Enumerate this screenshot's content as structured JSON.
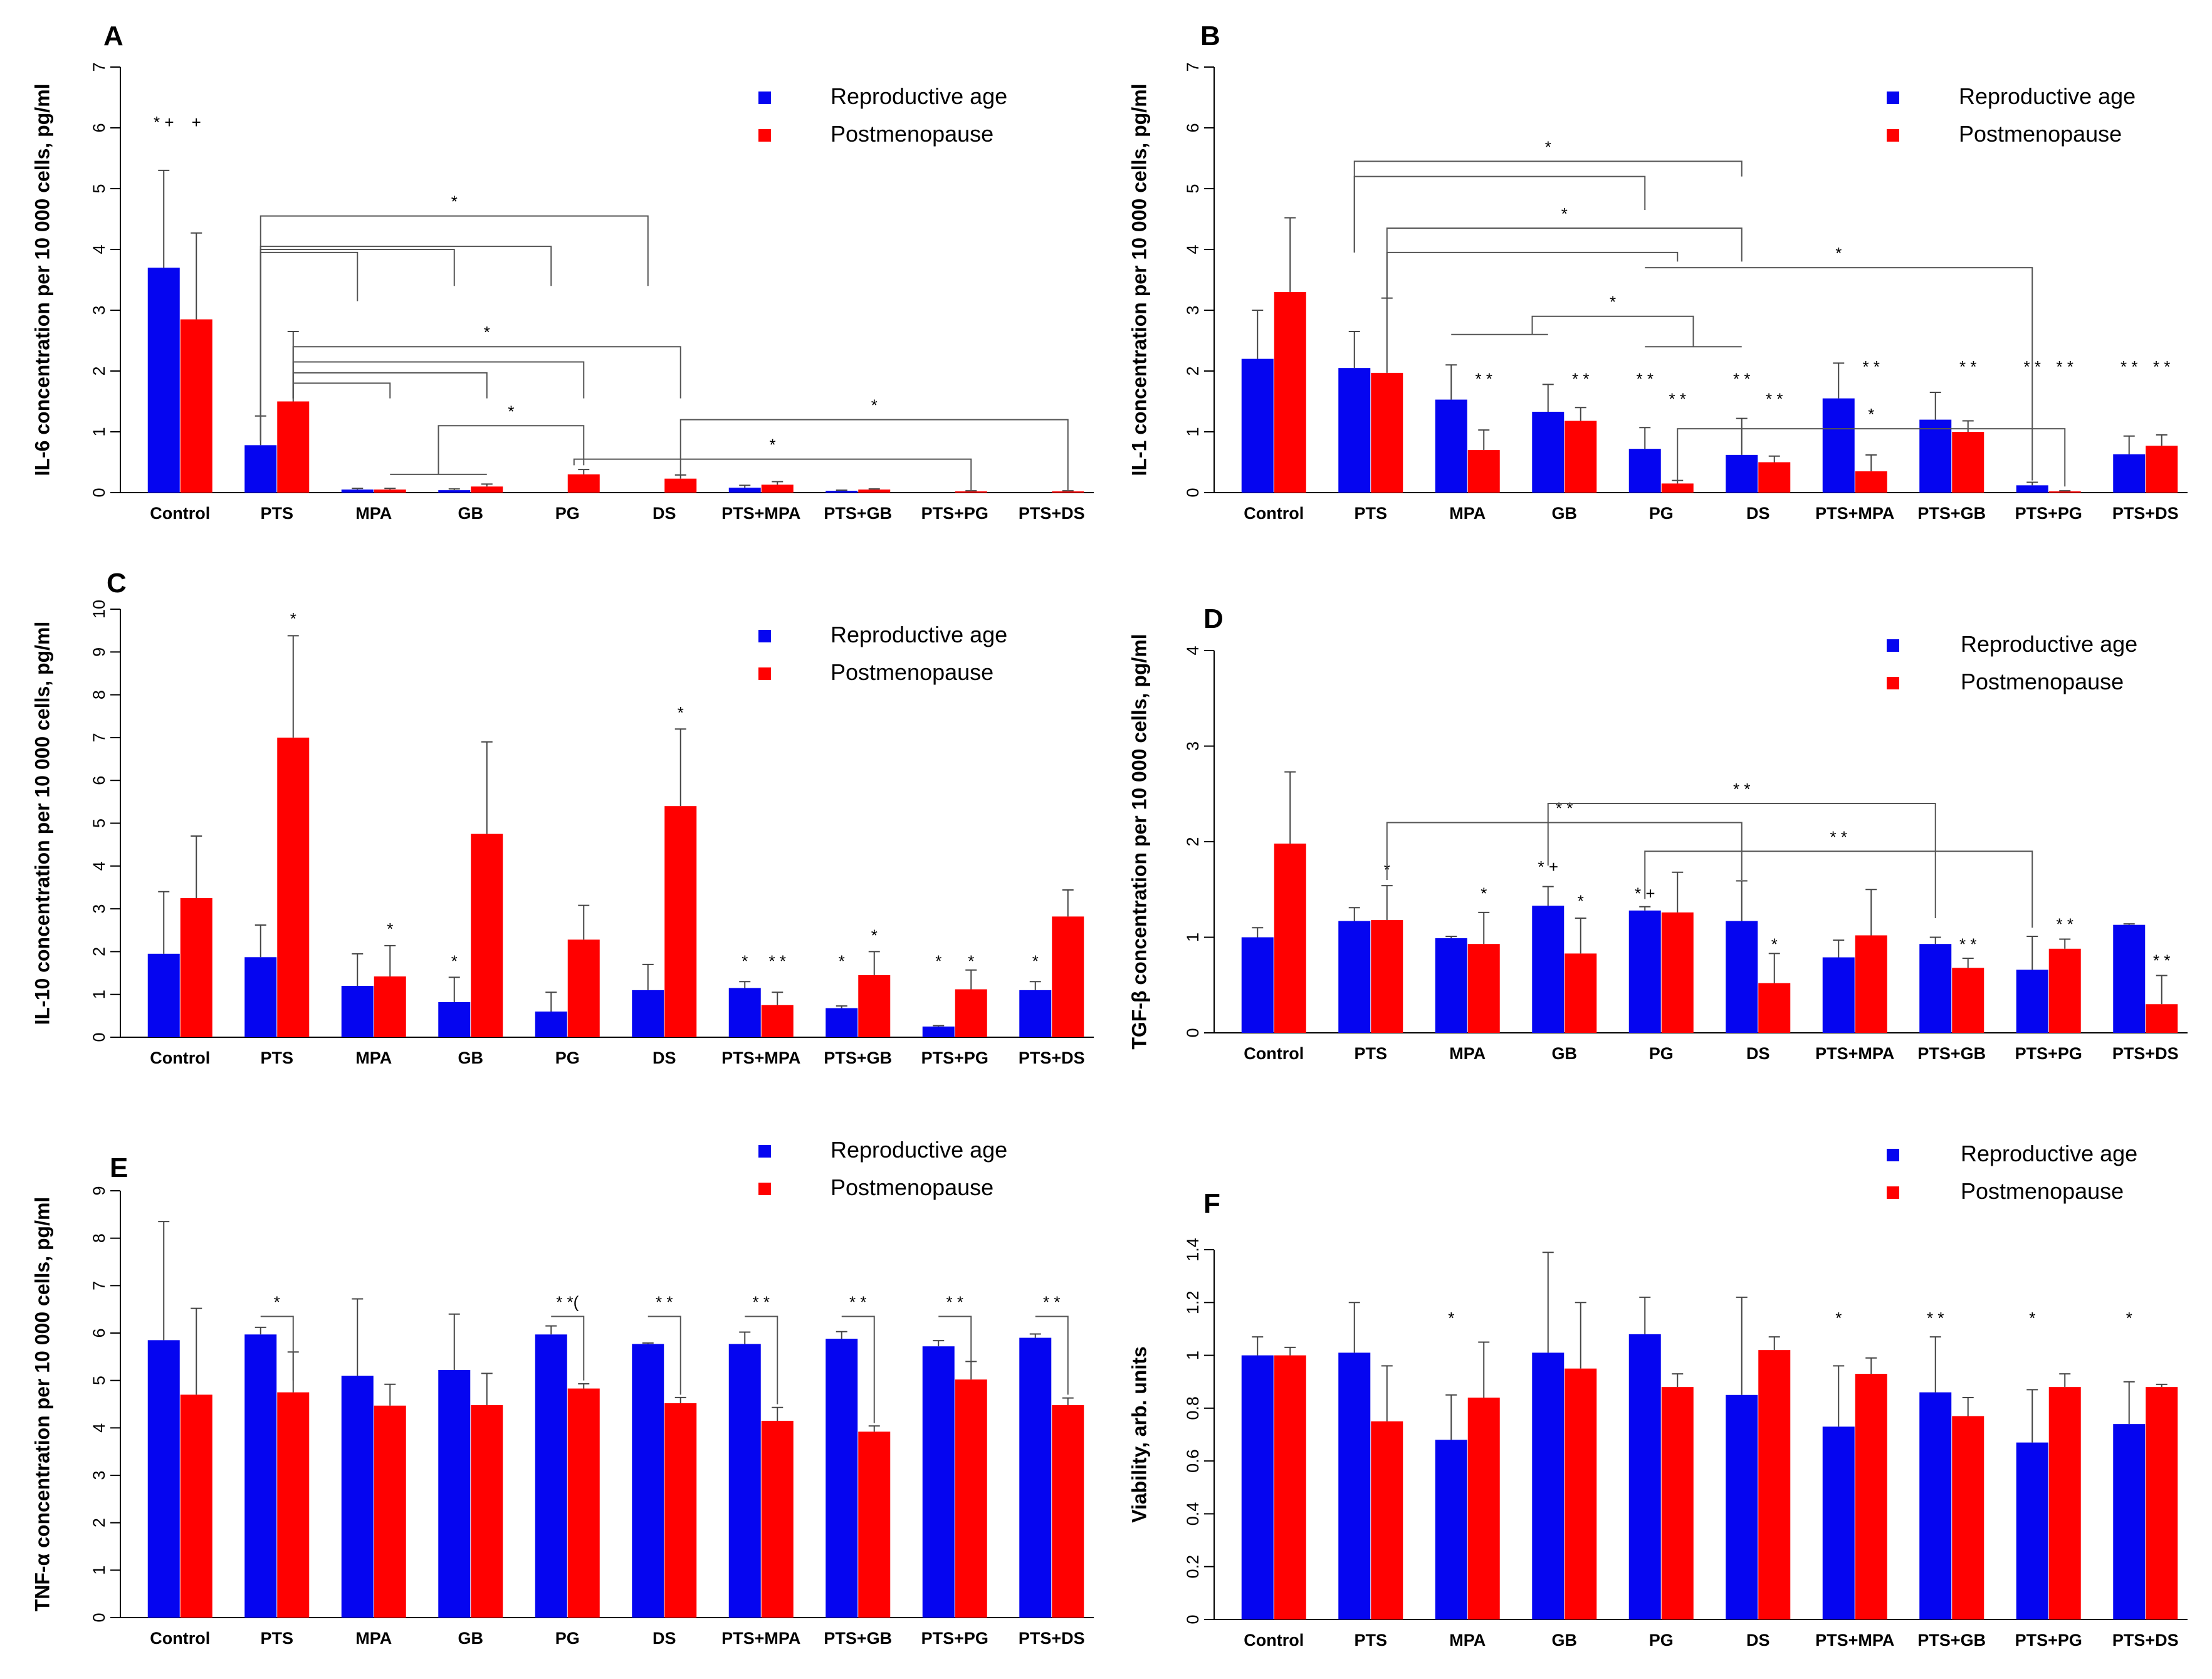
{
  "legend": {
    "blue_label": "Reproductive age",
    "red_label": "Postmenopause"
  },
  "colors": {
    "blue": "#0505f0",
    "red": "#ff0000",
    "axis": "#000000",
    "bracket": "#555555",
    "error": "#444444"
  },
  "chart_data": [
    {
      "type": "bar",
      "panel": "A",
      "ylabel": "IL-6 concentration per 10 000 cells, pg/ml",
      "ylim": [
        0,
        7
      ],
      "ticks": [
        0,
        1,
        2,
        3,
        4,
        5,
        6,
        7
      ],
      "categories": [
        "Control",
        "PTS",
        "MPA",
        "GB",
        "PG",
        "DS",
        "PTS+MPA",
        "PTS+GB",
        "PTS+PG",
        "PTS+DS"
      ],
      "series": [
        {
          "name": "Reproductive age",
          "values": [
            3.7,
            0.78,
            0.05,
            0.04,
            0,
            0,
            0.08,
            0.03,
            0,
            0
          ],
          "errors": [
            1.6,
            0.48,
            0.02,
            0.02,
            0,
            0,
            0.04,
            0.01,
            0,
            0
          ]
        },
        {
          "name": "Postmenopause",
          "values": [
            2.85,
            1.5,
            0.05,
            0.1,
            0.3,
            0.23,
            0.13,
            0.05,
            0.02,
            0.02
          ],
          "errors": [
            1.42,
            1.15,
            0.02,
            0.04,
            0.08,
            0.06,
            0.05,
            0.01,
            0.01,
            0.01
          ]
        }
      ],
      "annotations": [
        {
          "text": "* +",
          "cat": 0,
          "s": 0,
          "y": 6
        },
        {
          "text": "+",
          "cat": 0,
          "s": 1,
          "y": 6
        }
      ],
      "brackets": [
        {
          "x1": 1,
          "s1": 0,
          "y1": 0.85,
          "x2": 2,
          "s2": 0,
          "y2": 3.95,
          "d2": 3.15,
          "text": ""
        },
        {
          "x1": 1,
          "s1": 0,
          "y1": 0.85,
          "x2": 3,
          "s2": 0,
          "y2": 4.0,
          "d2": 3.4,
          "text": ""
        },
        {
          "x1": 1,
          "s1": 0,
          "y1": 0.85,
          "x2": 4,
          "s2": 0,
          "y2": 4.05,
          "d2": 3.4,
          "text": ""
        },
        {
          "x1": 1,
          "s1": 0,
          "y1": 0.85,
          "x2": 5,
          "s2": 0,
          "y2": 4.55,
          "d2": 3.4,
          "text": "*"
        },
        {
          "x1": 1,
          "s1": 1,
          "y1": 1.55,
          "x2": 2,
          "s2": 1,
          "y2": 1.8,
          "d2": 1.55,
          "text": ""
        },
        {
          "x1": 1,
          "s1": 1,
          "y1": 1.55,
          "x2": 3,
          "s2": 1,
          "y2": 1.97,
          "d2": 1.55,
          "text": ""
        },
        {
          "x1": 1,
          "s1": 1,
          "y1": 1.55,
          "x2": 4,
          "s2": 1,
          "y2": 2.15,
          "d2": 1.55,
          "text": ""
        },
        {
          "x1": 1,
          "s1": 1,
          "y1": 1.55,
          "x2": 5,
          "s2": 1,
          "y2": 2.4,
          "d2": 1.55,
          "text": "*"
        },
        {
          "x1": 2,
          "s1": 1,
          "y1": 0.3,
          "x2": 3,
          "s2": 1,
          "y2": 0.3,
          "d2": 0.3,
          "text": ""
        },
        {
          "x1": 2.5,
          "s1": 1,
          "y1": 0.3,
          "x2": 4,
          "s2": 1,
          "y2": 1.1,
          "d2": 0.45,
          "text": "*"
        },
        {
          "x1": 3.9,
          "s1": 1,
          "y1": 0.45,
          "x2": 8,
          "s2": 1,
          "y2": 0.55,
          "d2": 0.02,
          "text": "*"
        },
        {
          "x1": 5,
          "s1": 1,
          "y1": 0.3,
          "x2": 9,
          "s2": 1,
          "y2": 1.2,
          "d2": 0.02,
          "text": "*"
        }
      ]
    },
    {
      "type": "bar",
      "panel": "B",
      "ylabel": "IL-1 concentration per 10 000 cells, pg/ml",
      "ylim": [
        0,
        7
      ],
      "ticks": [
        0,
        1,
        2,
        3,
        4,
        5,
        6,
        7
      ],
      "categories": [
        "Control",
        "PTS",
        "MPA",
        "GB",
        "PG",
        "DS",
        "PTS+MPA",
        "PTS+GB",
        "PTS+PG",
        "PTS+DS"
      ],
      "series": [
        {
          "name": "Reproductive age",
          "values": [
            2.2,
            2.05,
            1.53,
            1.33,
            0.72,
            0.62,
            1.55,
            1.2,
            0.12,
            0.63
          ],
          "errors": [
            0.8,
            0.6,
            0.57,
            0.45,
            0.35,
            0.6,
            0.58,
            0.45,
            0.05,
            0.3
          ]
        },
        {
          "name": "Postmenopause",
          "values": [
            3.3,
            1.97,
            0.7,
            1.18,
            0.15,
            0.5,
            0.35,
            1.0,
            0.02,
            0.77
          ],
          "errors": [
            1.22,
            1.23,
            0.33,
            0.22,
            0.05,
            0.1,
            0.27,
            0.18,
            0.01,
            0.18
          ]
        }
      ],
      "annotations": [
        {
          "text": "* *",
          "cat": 2,
          "s": 1,
          "y": 1.78
        },
        {
          "text": "* *",
          "cat": 3,
          "s": 1,
          "y": 1.78
        },
        {
          "text": "* *",
          "cat": 4,
          "s": 0,
          "y": 1.78
        },
        {
          "text": "* *",
          "cat": 4,
          "s": 1,
          "y": 1.45
        },
        {
          "text": "* *",
          "cat": 5,
          "s": 0,
          "y": 1.78
        },
        {
          "text": "* *",
          "cat": 5,
          "s": 1,
          "y": 1.45
        },
        {
          "text": "* *",
          "cat": 6,
          "s": 1,
          "y": 1.98
        },
        {
          "text": "* *",
          "cat": 7,
          "s": 1,
          "y": 1.98
        },
        {
          "text": "* *",
          "cat": 8,
          "s": 0,
          "y": 1.98
        },
        {
          "text": "* *",
          "cat": 8,
          "s": 1,
          "y": 1.98
        },
        {
          "text": "* *",
          "cat": 9,
          "s": 0,
          "y": 1.98
        },
        {
          "text": "* *",
          "cat": 9,
          "s": 1,
          "y": 1.98
        }
      ],
      "brackets": [
        {
          "x1": 1,
          "s1": 0,
          "y1": 3.95,
          "x2": 4,
          "s2": 0,
          "y2": 5.2,
          "d2": 4.65,
          "text": ""
        },
        {
          "x1": 1,
          "s1": 0,
          "y1": 3.95,
          "x2": 5,
          "s2": 0,
          "y2": 5.45,
          "d2": 5.2,
          "text": "*"
        },
        {
          "x1": 1,
          "s1": 1,
          "y1": 3.2,
          "x2": 4,
          "s2": 1,
          "y2": 3.95,
          "d2": 3.8,
          "text": ""
        },
        {
          "x1": 1,
          "s1": 1,
          "y1": 3.2,
          "x2": 5,
          "s2": 0,
          "y2": 4.35,
          "d2": 3.8,
          "text": "*"
        },
        {
          "x1": 2.5,
          "s1": 1,
          "y1": 2.6,
          "x2": 4.5,
          "s2": 0,
          "y2": 2.9,
          "d2": 2.4,
          "text": "*"
        },
        {
          "x1": 2,
          "s1": 0,
          "y1": 2.6,
          "x2": 3,
          "s2": 0,
          "y2": 2.6,
          "d2": 2.6,
          "text": ""
        },
        {
          "x1": 4,
          "s1": 0,
          "y1": 2.4,
          "x2": 5,
          "s2": 0,
          "y2": 2.4,
          "d2": 2.4,
          "text": ""
        },
        {
          "x1": 4,
          "s1": 0,
          "y1": 3.7,
          "x2": 8,
          "s2": 0,
          "y2": 3.7,
          "d2": 0.2,
          "text": "*"
        },
        {
          "x1": 4,
          "s1": 1,
          "y1": 0.2,
          "x2": 8,
          "s2": 1,
          "y2": 1.05,
          "d2": 0.1,
          "text": "*"
        }
      ]
    },
    {
      "type": "bar",
      "panel": "C",
      "ylabel": "IL-10 concentration per 10 000 cells, pg/ml",
      "ylim": [
        0,
        10
      ],
      "ticks": [
        0,
        1,
        2,
        3,
        4,
        5,
        6,
        7,
        8,
        9,
        10
      ],
      "categories": [
        "Control",
        "PTS",
        "MPA",
        "GB",
        "PG",
        "DS",
        "PTS+MPA",
        "PTS+GB",
        "PTS+PG",
        "PTS+DS"
      ],
      "series": [
        {
          "name": "Reproductive age",
          "values": [
            1.95,
            1.87,
            1.2,
            0.82,
            0.6,
            1.1,
            1.15,
            0.68,
            0.25,
            1.1
          ],
          "errors": [
            1.45,
            0.75,
            0.75,
            0.58,
            0.45,
            0.6,
            0.15,
            0.05,
            0.02,
            0.2
          ]
        },
        {
          "name": "Postmenopause",
          "values": [
            3.25,
            7.0,
            1.42,
            4.75,
            2.28,
            5.4,
            0.75,
            1.45,
            1.12,
            2.82
          ],
          "errors": [
            1.45,
            2.38,
            0.72,
            2.15,
            0.8,
            1.8,
            0.3,
            0.55,
            0.45,
            0.62
          ]
        }
      ],
      "annotations": [
        {
          "text": "*",
          "cat": 1,
          "s": 1,
          "y": 9.65
        },
        {
          "text": "*",
          "cat": 2,
          "s": 1,
          "y": 2.4
        },
        {
          "text": "*",
          "cat": 3,
          "s": 0,
          "y": 1.65
        },
        {
          "text": "*",
          "cat": 5,
          "s": 1,
          "y": 7.45
        },
        {
          "text": "*",
          "cat": 6,
          "s": 0,
          "y": 1.65
        },
        {
          "text": "* *",
          "cat": 6,
          "s": 1,
          "y": 1.65
        },
        {
          "text": "*",
          "cat": 7,
          "s": 0,
          "y": 1.65
        },
        {
          "text": "*",
          "cat": 7,
          "s": 1,
          "y": 2.25
        },
        {
          "text": "*",
          "cat": 8,
          "s": 0,
          "y": 1.65
        },
        {
          "text": "*",
          "cat": 8,
          "s": 1,
          "y": 1.65
        },
        {
          "text": "*",
          "cat": 9,
          "s": 0,
          "y": 1.65
        }
      ],
      "brackets": []
    },
    {
      "type": "bar",
      "panel": "D",
      "ylabel": "TGF-β concentration per 10 000 cells, pg/ml",
      "ylim": [
        0,
        4
      ],
      "ticks": [
        0,
        1,
        2,
        3,
        4
      ],
      "categories": [
        "Control",
        "PTS",
        "MPA",
        "GB",
        "PG",
        "DS",
        "PTS+MPA",
        "PTS+GB",
        "PTS+PG",
        "PTS+DS"
      ],
      "series": [
        {
          "name": "Reproductive age",
          "values": [
            1.0,
            1.17,
            0.99,
            1.33,
            1.28,
            1.17,
            0.79,
            0.93,
            0.66,
            1.13
          ],
          "errors": [
            0.1,
            0.14,
            0.02,
            0.2,
            0.04,
            0.42,
            0.18,
            0.07,
            0.35,
            0.01
          ]
        },
        {
          "name": "Postmenopause",
          "values": [
            1.98,
            1.18,
            0.93,
            0.83,
            1.26,
            0.52,
            1.02,
            0.68,
            0.88,
            0.3
          ],
          "errors": [
            0.75,
            0.36,
            0.33,
            0.37,
            0.42,
            0.31,
            0.48,
            0.1,
            0.1,
            0.3
          ]
        }
      ],
      "annotations": [
        {
          "text": "*",
          "cat": 1,
          "s": 1,
          "y": 1.65
        },
        {
          "text": "*",
          "cat": 2,
          "s": 1,
          "y": 1.4
        },
        {
          "text": "* +",
          "cat": 3,
          "s": 0,
          "y": 1.68
        },
        {
          "text": "*",
          "cat": 3,
          "s": 1,
          "y": 1.32
        },
        {
          "text": "* +",
          "cat": 4,
          "s": 0,
          "y": 1.4
        },
        {
          "text": "*",
          "cat": 5,
          "s": 1,
          "y": 0.87
        },
        {
          "text": "* *",
          "cat": 7,
          "s": 1,
          "y": 0.87
        },
        {
          "text": "* *",
          "cat": 8,
          "s": 1,
          "y": 1.08
        },
        {
          "text": "* *",
          "cat": 9,
          "s": 1,
          "y": 0.7
        }
      ],
      "brackets": [
        {
          "x1": 1,
          "s1": 1,
          "y1": 1.6,
          "x2": 5,
          "s2": 0,
          "y2": 2.2,
          "d2": 1.6,
          "text": "* *"
        },
        {
          "x1": 3,
          "s1": 0,
          "y1": 1.75,
          "x2": 7,
          "s2": 0,
          "y2": 2.4,
          "d2": 1.2,
          "text": "* *"
        },
        {
          "x1": 4,
          "s1": 0,
          "y1": 1.4,
          "x2": 8,
          "s2": 0,
          "y2": 1.9,
          "d2": 1.1,
          "text": "* *"
        }
      ]
    },
    {
      "type": "bar",
      "panel": "E",
      "ylabel": "TNF-α concentration per 10 000 cells, pg/ml",
      "ylim": [
        0,
        9
      ],
      "ticks": [
        0,
        1,
        2,
        3,
        4,
        5,
        6,
        7,
        8,
        9
      ],
      "categories": [
        "Control",
        "PTS",
        "MPA",
        "GB",
        "PG",
        "DS",
        "PTS+MPA",
        "PTS+GB",
        "PTS+PG",
        "PTS+DS"
      ],
      "series": [
        {
          "name": "Reproductive age",
          "values": [
            5.85,
            5.97,
            5.1,
            5.22,
            5.97,
            5.77,
            5.77,
            5.88,
            5.72,
            5.9
          ],
          "errors": [
            2.5,
            0.15,
            1.62,
            1.18,
            0.18,
            0.02,
            0.25,
            0.15,
            0.12,
            0.08
          ]
        },
        {
          "name": "Postmenopause",
          "values": [
            4.7,
            4.75,
            4.47,
            4.48,
            4.83,
            4.52,
            4.15,
            3.92,
            5.02,
            4.48
          ],
          "errors": [
            1.82,
            0.85,
            0.45,
            0.67,
            0.1,
            0.12,
            0.28,
            0.12,
            0.38,
            0.15
          ]
        }
      ],
      "annotations": [],
      "brackets": [
        {
          "x1": 1,
          "s1": 0,
          "y1": 6.35,
          "x2": 1,
          "s2": 1,
          "y2": 6.35,
          "d2": 5.0,
          "text": "*"
        },
        {
          "x1": 4,
          "s1": 0,
          "y1": 6.35,
          "x2": 4,
          "s2": 1,
          "y2": 6.35,
          "d2": 5.0,
          "text": "* *("
        },
        {
          "x1": 5,
          "s1": 0,
          "y1": 6.35,
          "x2": 5,
          "s2": 1,
          "y2": 6.35,
          "d2": 4.7,
          "text": "* *"
        },
        {
          "x1": 6,
          "s1": 0,
          "y1": 6.35,
          "x2": 6,
          "s2": 1,
          "y2": 6.35,
          "d2": 4.5,
          "text": "* *"
        },
        {
          "x1": 7,
          "s1": 0,
          "y1": 6.35,
          "x2": 7,
          "s2": 1,
          "y2": 6.35,
          "d2": 4.1,
          "text": "* *"
        },
        {
          "x1": 8,
          "s1": 0,
          "y1": 6.35,
          "x2": 8,
          "s2": 1,
          "y2": 6.35,
          "d2": 5.4,
          "text": "* *"
        },
        {
          "x1": 9,
          "s1": 0,
          "y1": 6.35,
          "x2": 9,
          "s2": 1,
          "y2": 6.35,
          "d2": 4.7,
          "text": "* *"
        }
      ]
    },
    {
      "type": "bar",
      "panel": "F",
      "ylabel": "Viability, arb. units",
      "ylim": [
        0,
        1.4
      ],
      "ticks": [
        0.0,
        0.2,
        0.4,
        0.6,
        0.8,
        1.0,
        1.2,
        1.4
      ],
      "categories": [
        "Control",
        "PTS",
        "MPA",
        "GB",
        "PG",
        "DS",
        "PTS+MPA",
        "PTS+GB",
        "PTS+PG",
        "PTS+DS"
      ],
      "series": [
        {
          "name": "Reproductive age",
          "values": [
            1.0,
            1.01,
            0.68,
            1.01,
            1.08,
            0.85,
            0.73,
            0.86,
            0.67,
            0.74
          ],
          "errors": [
            0.07,
            0.19,
            0.17,
            0.38,
            0.14,
            0.37,
            0.23,
            0.21,
            0.2,
            0.16
          ]
        },
        {
          "name": "Postmenopause",
          "values": [
            1.0,
            0.75,
            0.84,
            0.95,
            0.88,
            1.02,
            0.93,
            0.77,
            0.88,
            0.88
          ],
          "errors": [
            0.03,
            0.21,
            0.21,
            0.25,
            0.05,
            0.05,
            0.06,
            0.07,
            0.05,
            0.01
          ]
        }
      ],
      "annotations": [
        {
          "text": "*",
          "cat": 2,
          "s": 0,
          "y": 1.12
        },
        {
          "text": "*",
          "cat": 6,
          "s": 0,
          "y": 1.12
        },
        {
          "text": "* *",
          "cat": 7,
          "s": 0,
          "y": 1.12
        },
        {
          "text": "*",
          "cat": 8,
          "s": 0,
          "y": 1.12
        },
        {
          "text": "*",
          "cat": 9,
          "s": 0,
          "y": 1.12
        }
      ],
      "brackets": []
    }
  ]
}
